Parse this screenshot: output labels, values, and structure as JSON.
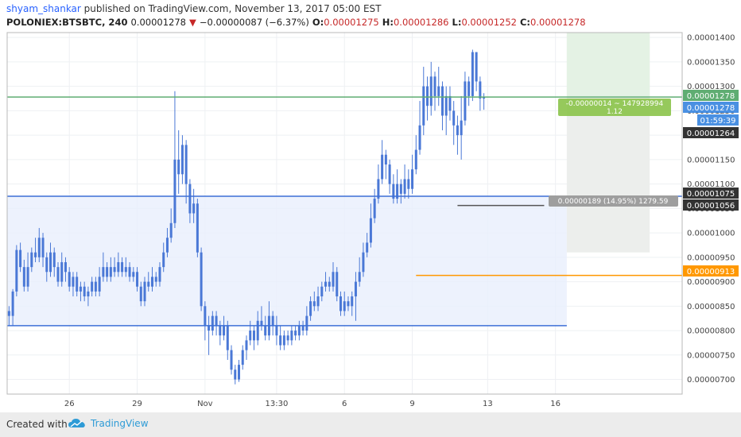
{
  "header": {
    "author": "shyam_shankar",
    "published": "published on TradingView.com, November 13, 2017 05:00 EST",
    "symbol": "POLONIEX:BTSBTC, 240",
    "last": "0.00001278",
    "change_arrow": "▼",
    "change": "−0.00000087 (−6.37%)",
    "o_label": "O:",
    "o": "0.00001275",
    "h_label": "H:",
    "h": "0.00001286",
    "l_label": "L:",
    "l": "0.00001252",
    "c_label": "C:",
    "c": "0.00001278"
  },
  "footer": {
    "created_with": "Created with",
    "brand": "TradingView"
  },
  "chart_data": {
    "type": "candlestick",
    "ylim": [
      6.7e-06,
      1.41e-05
    ],
    "y_ticks": [
      "0.00000700",
      "0.00000750",
      "0.00000800",
      "0.00000850",
      "0.00000900",
      "0.00000950",
      "0.00001000",
      "0.00001050",
      "0.00001100",
      "0.00001150",
      "0.00001200",
      "0.00001250",
      "0.00001300",
      "0.00001350",
      "0.00001400"
    ],
    "x_ticks": [
      "26",
      "29",
      "Nov",
      "13:30",
      "6",
      "9",
      "13",
      "16"
    ],
    "x_tick_bars": [
      16,
      34,
      52,
      71,
      89,
      107,
      127,
      145
    ],
    "bar_count": 150,
    "candles": [
      [
        8.4e-06,
        8.3e-06,
        8.5e-06,
        8.1e-06
      ],
      [
        8.3e-06,
        8.8e-06,
        8.85e-06,
        8.1e-06
      ],
      [
        8.8e-06,
        9.65e-06,
        9.75e-06,
        8.7e-06
      ],
      [
        9.65e-06,
        9.3e-06,
        9.8e-06,
        9.2e-06
      ],
      [
        9.3e-06,
        8.9e-06,
        9.45e-06,
        8.8e-06
      ],
      [
        8.9e-06,
        9.3e-06,
        9.6e-06,
        8.8e-06
      ],
      [
        9.3e-06,
        9.6e-06,
        9.7e-06,
        9.2e-06
      ],
      [
        9.6e-06,
        9.5e-06,
        9.9e-06,
        9.4e-06
      ],
      [
        9.5e-06,
        9.9e-06,
        1.01e-05,
        9.4e-06
      ],
      [
        9.9e-06,
        9.5e-06,
        1e-05,
        9.3e-06
      ],
      [
        9.5e-06,
        9.2e-06,
        9.6e-06,
        9e-06
      ],
      [
        9.2e-06,
        9.6e-06,
        9.8e-06,
        9.1e-06
      ],
      [
        9.6e-06,
        9.3e-06,
        9.7e-06,
        9.1e-06
      ],
      [
        9.3e-06,
        9e-06,
        9.4e-06,
        8.9e-06
      ],
      [
        9e-06,
        9.4e-06,
        9.6e-06,
        8.9e-06
      ],
      [
        9.4e-06,
        9.2e-06,
        9.5e-06,
        9e-06
      ],
      [
        9.2e-06,
        8.9e-06,
        9.3e-06,
        8.8e-06
      ],
      [
        8.9e-06,
        9.1e-06,
        9.2e-06,
        8.7e-06
      ],
      [
        9.1e-06,
        8.8e-06,
        9.2e-06,
        8.7e-06
      ],
      [
        8.8e-06,
        8.9e-06,
        9e-06,
        8.6e-06
      ],
      [
        8.9e-06,
        8.7e-06,
        9e-06,
        8.6e-06
      ],
      [
        8.7e-06,
        8.8e-06,
        8.9e-06,
        8.5e-06
      ],
      [
        8.8e-06,
        9e-06,
        9.1e-06,
        8.7e-06
      ],
      [
        9e-06,
        8.8e-06,
        9.1e-06,
        8.7e-06
      ],
      [
        8.8e-06,
        9.1e-06,
        9.3e-06,
        8.7e-06
      ],
      [
        9.1e-06,
        9.3e-06,
        9.6e-06,
        9e-06
      ],
      [
        9.3e-06,
        9.1e-06,
        9.4e-06,
        9e-06
      ],
      [
        9.1e-06,
        9.3e-06,
        9.5e-06,
        9e-06
      ],
      [
        9.3e-06,
        9.2e-06,
        9.5e-06,
        9.1e-06
      ],
      [
        9.2e-06,
        9.4e-06,
        9.6e-06,
        9.1e-06
      ],
      [
        9.4e-06,
        9.2e-06,
        9.5e-06,
        9.1e-06
      ],
      [
        9.2e-06,
        9.3e-06,
        9.5e-06,
        9.1e-06
      ],
      [
        9.3e-06,
        9.1e-06,
        9.4e-06,
        9e-06
      ],
      [
        9.1e-06,
        9.2e-06,
        9.3e-06,
        9e-06
      ],
      [
        9.2e-06,
        8.9e-06,
        9.3e-06,
        8.8e-06
      ],
      [
        8.9e-06,
        8.6e-06,
        9e-06,
        8.5e-06
      ],
      [
        8.6e-06,
        9e-06,
        9.1e-06,
        8.5e-06
      ],
      [
        9e-06,
        8.9e-06,
        9.2e-06,
        8.8e-06
      ],
      [
        8.9e-06,
        9.1e-06,
        9.3e-06,
        8.8e-06
      ],
      [
        9.1e-06,
        9e-06,
        9.2e-06,
        8.9e-06
      ],
      [
        9e-06,
        9.3e-06,
        9.4e-06,
        8.9e-06
      ],
      [
        9.3e-06,
        9.6e-06,
        9.8e-06,
        9.2e-06
      ],
      [
        9.6e-06,
        9.9e-06,
        1.01e-05,
        9.5e-06
      ],
      [
        9.9e-06,
        1.02e-05,
        1.05e-05,
        9.8e-06
      ],
      [
        1.02e-05,
        1.15e-05,
        1.29e-05,
        1.01e-05
      ],
      [
        1.15e-05,
        1.12e-05,
        1.21e-05,
        1.08e-05
      ],
      [
        1.12e-05,
        1.18e-05,
        1.2e-05,
        1.1e-05
      ],
      [
        1.18e-05,
        1.1e-05,
        1.19e-05,
        1.06e-05
      ],
      [
        1.1e-05,
        1.04e-05,
        1.11e-05,
        1.02e-05
      ],
      [
        1.04e-05,
        1.06e-05,
        1.09e-05,
        1.02e-05
      ],
      [
        1.06e-05,
        9.6e-06,
        1.07e-05,
        9.5e-06
      ],
      [
        9.6e-06,
        8.5e-06,
        9.7e-06,
        8.4e-06
      ],
      [
        8.5e-06,
        8.1e-06,
        8.6e-06,
        7.8e-06
      ],
      [
        8.1e-06,
        8e-06,
        8.3e-06,
        7.5e-06
      ],
      [
        8e-06,
        8.3e-06,
        8.4e-06,
        7.9e-06
      ],
      [
        8.3e-06,
        8.1e-06,
        8.4e-06,
        7.9e-06
      ],
      [
        8.1e-06,
        7.9e-06,
        8.2e-06,
        7.7e-06
      ],
      [
        7.9e-06,
        8.1e-06,
        8.3e-06,
        7.8e-06
      ],
      [
        8.1e-06,
        7.6e-06,
        8.2e-06,
        7.4e-06
      ],
      [
        7.6e-06,
        7.2e-06,
        7.7e-06,
        7.1e-06
      ],
      [
        7.2e-06,
        7e-06,
        7.3e-06,
        6.9e-06
      ],
      [
        7e-06,
        7.3e-06,
        7.4e-06,
        6.95e-06
      ],
      [
        7.3e-06,
        7.6e-06,
        7.7e-06,
        7.2e-06
      ],
      [
        7.6e-06,
        7.8e-06,
        7.9e-06,
        7.4e-06
      ],
      [
        7.8e-06,
        8e-06,
        8.2e-06,
        7.7e-06
      ],
      [
        8e-06,
        7.8e-06,
        8.1e-06,
        7.6e-06
      ],
      [
        7.8e-06,
        8.2e-06,
        8.4e-06,
        7.7e-06
      ],
      [
        8.2e-06,
        8.1e-06,
        8.5e-06,
        8e-06
      ],
      [
        8.1e-06,
        7.9e-06,
        8.3e-06,
        7.8e-06
      ],
      [
        7.9e-06,
        8.3e-06,
        8.6e-06,
        7.8e-06
      ],
      [
        8.3e-06,
        8.1e-06,
        8.4e-06,
        7.9e-06
      ],
      [
        8.1e-06,
        7.9e-06,
        8.3e-06,
        7.7e-06
      ],
      [
        7.9e-06,
        7.7e-06,
        8.1e-06,
        7.6e-06
      ],
      [
        7.7e-06,
        7.9e-06,
        8e-06,
        7.6e-06
      ],
      [
        7.9e-06,
        7.8e-06,
        8e-06,
        7.7e-06
      ],
      [
        7.8e-06,
        8e-06,
        8.1e-06,
        7.7e-06
      ],
      [
        8e-06,
        7.9e-06,
        8.1e-06,
        7.8e-06
      ],
      [
        7.9e-06,
        8.1e-06,
        8.2e-06,
        7.8e-06
      ],
      [
        8.1e-06,
        8e-06,
        8.2e-06,
        7.9e-06
      ],
      [
        8e-06,
        8.3e-06,
        8.5e-06,
        7.9e-06
      ],
      [
        8.3e-06,
        8.6e-06,
        8.7e-06,
        8.2e-06
      ],
      [
        8.6e-06,
        8.5e-06,
        8.8e-06,
        8.4e-06
      ],
      [
        8.5e-06,
        8.7e-06,
        8.9e-06,
        8.4e-06
      ],
      [
        8.7e-06,
        8.9e-06,
        9e-06,
        8.6e-06
      ],
      [
        8.9e-06,
        9e-06,
        9.2e-06,
        8.8e-06
      ],
      [
        9e-06,
        8.9e-06,
        9.1e-06,
        8.8e-06
      ],
      [
        8.9e-06,
        9.2e-06,
        9.4e-06,
        8.8e-06
      ],
      [
        9.2e-06,
        8.7e-06,
        9.3e-06,
        8.6e-06
      ],
      [
        8.7e-06,
        8.4e-06,
        8.8e-06,
        8.3e-06
      ],
      [
        8.4e-06,
        8.6e-06,
        8.8e-06,
        8.3e-06
      ],
      [
        8.6e-06,
        8.5e-06,
        8.7e-06,
        8.4e-06
      ],
      [
        8.5e-06,
        8.7e-06,
        8.8e-06,
        8.3e-06
      ],
      [
        8.7e-06,
        9e-06,
        9.2e-06,
        8.2e-06
      ],
      [
        9e-06,
        9.2e-06,
        9.5e-06,
        8.9e-06
      ],
      [
        9.2e-06,
        9.6e-06,
        9.8e-06,
        9.1e-06
      ],
      [
        9.6e-06,
        9.8e-06,
        1e-05,
        9.5e-06
      ],
      [
        9.8e-06,
        1.03e-05,
        1.06e-05,
        9.7e-06
      ],
      [
        1.03e-05,
        1.07e-05,
        1.09e-05,
        1.02e-05
      ],
      [
        1.07e-05,
        1.11e-05,
        1.14e-05,
        1.06e-05
      ],
      [
        1.11e-05,
        1.16e-05,
        1.19e-05,
        1.1e-05
      ],
      [
        1.16e-05,
        1.14e-05,
        1.17e-05,
        1.11e-05
      ],
      [
        1.14e-05,
        1.1e-05,
        1.15e-05,
        1.08e-05
      ],
      [
        1.1e-05,
        1.07e-05,
        1.12e-05,
        1.06e-05
      ],
      [
        1.07e-05,
        1.1e-05,
        1.13e-05,
        1.06e-05
      ],
      [
        1.1e-05,
        1.08e-05,
        1.11e-05,
        1.06e-05
      ],
      [
        1.08e-05,
        1.11e-05,
        1.14e-05,
        1.07e-05
      ],
      [
        1.11e-05,
        1.09e-05,
        1.13e-05,
        1.07e-05
      ],
      [
        1.09e-05,
        1.13e-05,
        1.16e-05,
        1.08e-05
      ],
      [
        1.13e-05,
        1.17e-05,
        1.2e-05,
        1.12e-05
      ],
      [
        1.17e-05,
        1.22e-05,
        1.27e-05,
        1.16e-05
      ],
      [
        1.22e-05,
        1.3e-05,
        1.34e-05,
        1.2e-05
      ],
      [
        1.3e-05,
        1.26e-05,
        1.32e-05,
        1.23e-05
      ],
      [
        1.26e-05,
        1.32e-05,
        1.35e-05,
        1.24e-05
      ],
      [
        1.32e-05,
        1.28e-05,
        1.33e-05,
        1.25e-05
      ],
      [
        1.28e-05,
        1.3e-05,
        1.34e-05,
        1.26e-05
      ],
      [
        1.3e-05,
        1.24e-05,
        1.31e-05,
        1.21e-05
      ],
      [
        1.24e-05,
        1.28e-05,
        1.3e-05,
        1.2e-05
      ],
      [
        1.28e-05,
        1.25e-05,
        1.3e-05,
        1.23e-05
      ],
      [
        1.25e-05,
        1.22e-05,
        1.27e-05,
        1.18e-05
      ],
      [
        1.22e-05,
        1.2e-05,
        1.24e-05,
        1.16e-05
      ],
      [
        1.2e-05,
        1.23e-05,
        1.28e-05,
        1.15e-05
      ],
      [
        1.23e-05,
        1.31e-05,
        1.33e-05,
        1.22e-05
      ],
      [
        1.31e-05,
        1.28e-05,
        1.32e-05,
        1.26e-05
      ],
      [
        1.28e-05,
        1.37e-05,
        1.375e-05,
        1.27e-05
      ],
      [
        1.37e-05,
        1.31e-05,
        1.37e-05,
        1.29e-05
      ],
      [
        1.31e-05,
        1.275e-05,
        1.32e-05,
        1.25e-05
      ],
      [
        1.275e-05,
        1.278e-05,
        1.286e-05,
        1.252e-05
      ]
    ],
    "price_lines": [
      {
        "name": "green-level-line",
        "value": 1.278e-05,
        "color": "#5fad72",
        "label": "0.00001278"
      },
      {
        "name": "blue-top-level-line",
        "value": 1.075e-05,
        "color": "#3d6fd6",
        "label": "0.00001075"
      },
      {
        "name": "blue-bottom-level-line",
        "value": 8.1e-06,
        "color": "#3d6fd6"
      },
      {
        "name": "orange-level-line",
        "value": 9.13e-06,
        "color": "#ff9800",
        "label": "0.00000913"
      },
      {
        "name": "gray-level-line",
        "value": 1.056e-05,
        "color": "#555555",
        "label": "0.00001056"
      }
    ],
    "price_badges": {
      "last_price": "0.00001278",
      "timer": "01:59:39",
      "dark_level": "0.00001264"
    },
    "measure_labels": {
      "green_box_line1": "-0.00000014 ~ 147928994",
      "green_box_line2": "1.12",
      "gray_box": "0.00000189 (14.95%) 1279.59"
    },
    "colors": {
      "up": "#4a78d6",
      "down": "#4a78d6",
      "range_fill": "#e8effc",
      "target_fill": "#e9ece9"
    }
  }
}
